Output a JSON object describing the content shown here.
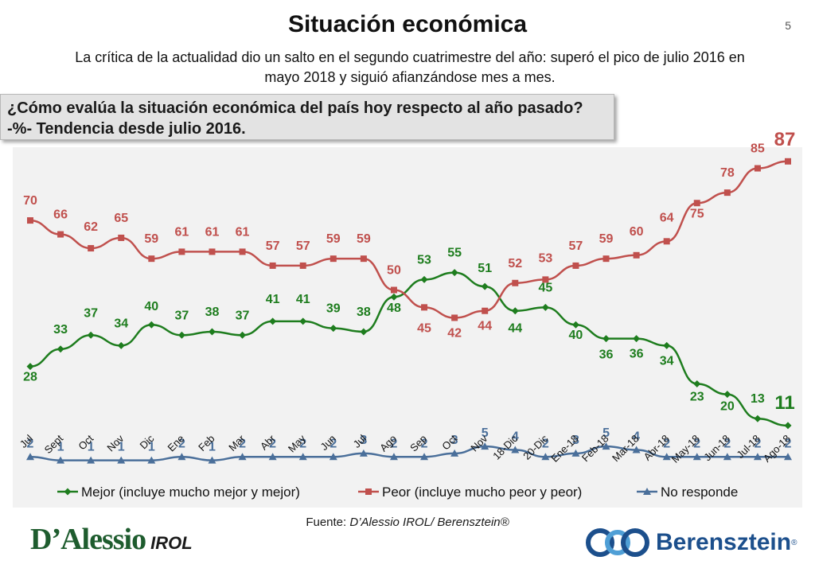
{
  "header": {
    "title": "Situación económica",
    "page_number": "5",
    "subtitle": "La crítica de la actualidad dio un salto en el segundo cuatrimestre del año: superó el pico de julio 2016 en mayo 2018 y siguió afianzándose mes a mes.",
    "question_line1": "¿Cómo evalúa la situación económica del país hoy respecto al año pasado?",
    "question_line2": "-%- Tendencia desde julio 2016."
  },
  "footer": {
    "source_prefix": "Fuente: ",
    "source_italic": "D’Alessio IROL/ Berensztein®",
    "logo_left_main": "D’Alessio",
    "logo_left_sub": "IROL",
    "logo_right_text": "Berensztein",
    "logo_right_mark": "®"
  },
  "chart_data": {
    "type": "line",
    "categories": [
      "Jul",
      "Sept",
      "Oct",
      "Nov",
      "Dic",
      "Ene",
      "Feb",
      "Mar",
      "Abr",
      "May",
      "Jun",
      "Jul",
      "Ago",
      "Sep",
      "Oct",
      "Nov",
      "18-Dic",
      "20-Dic",
      "Ene-18",
      "Feb-18",
      "Mar-18",
      "Abr-18",
      "May-18",
      "Jun-18",
      "Jul-18",
      "Ago-18"
    ],
    "ylim": [
      0,
      100
    ],
    "grid": false,
    "legend_position": "bottom",
    "series": [
      {
        "name": "Mejor (incluye mucho mejor y mejor)",
        "color": "#1e7d1e",
        "marker": "diamond",
        "values": [
          28,
          33,
          37,
          34,
          40,
          37,
          38,
          37,
          41,
          41,
          39,
          38,
          48,
          53,
          55,
          51,
          44,
          45,
          40,
          36,
          36,
          34,
          23,
          20,
          13,
          11
        ]
      },
      {
        "name": "Peor (incluye mucho peor y peor)",
        "color": "#c0504d",
        "marker": "square",
        "values": [
          70,
          66,
          62,
          65,
          59,
          61,
          61,
          61,
          57,
          57,
          59,
          59,
          50,
          45,
          42,
          44,
          52,
          53,
          57,
          59,
          60,
          64,
          75,
          78,
          85,
          87
        ]
      },
      {
        "name": "No responde",
        "color": "#4a6f9a",
        "marker": "triangle",
        "values": [
          2,
          1,
          1,
          1,
          1,
          2,
          1,
          2,
          2,
          2,
          2,
          3,
          2,
          2,
          3,
          5,
          4,
          2,
          3,
          5,
          4,
          2,
          2,
          2,
          2,
          2
        ]
      }
    ]
  }
}
